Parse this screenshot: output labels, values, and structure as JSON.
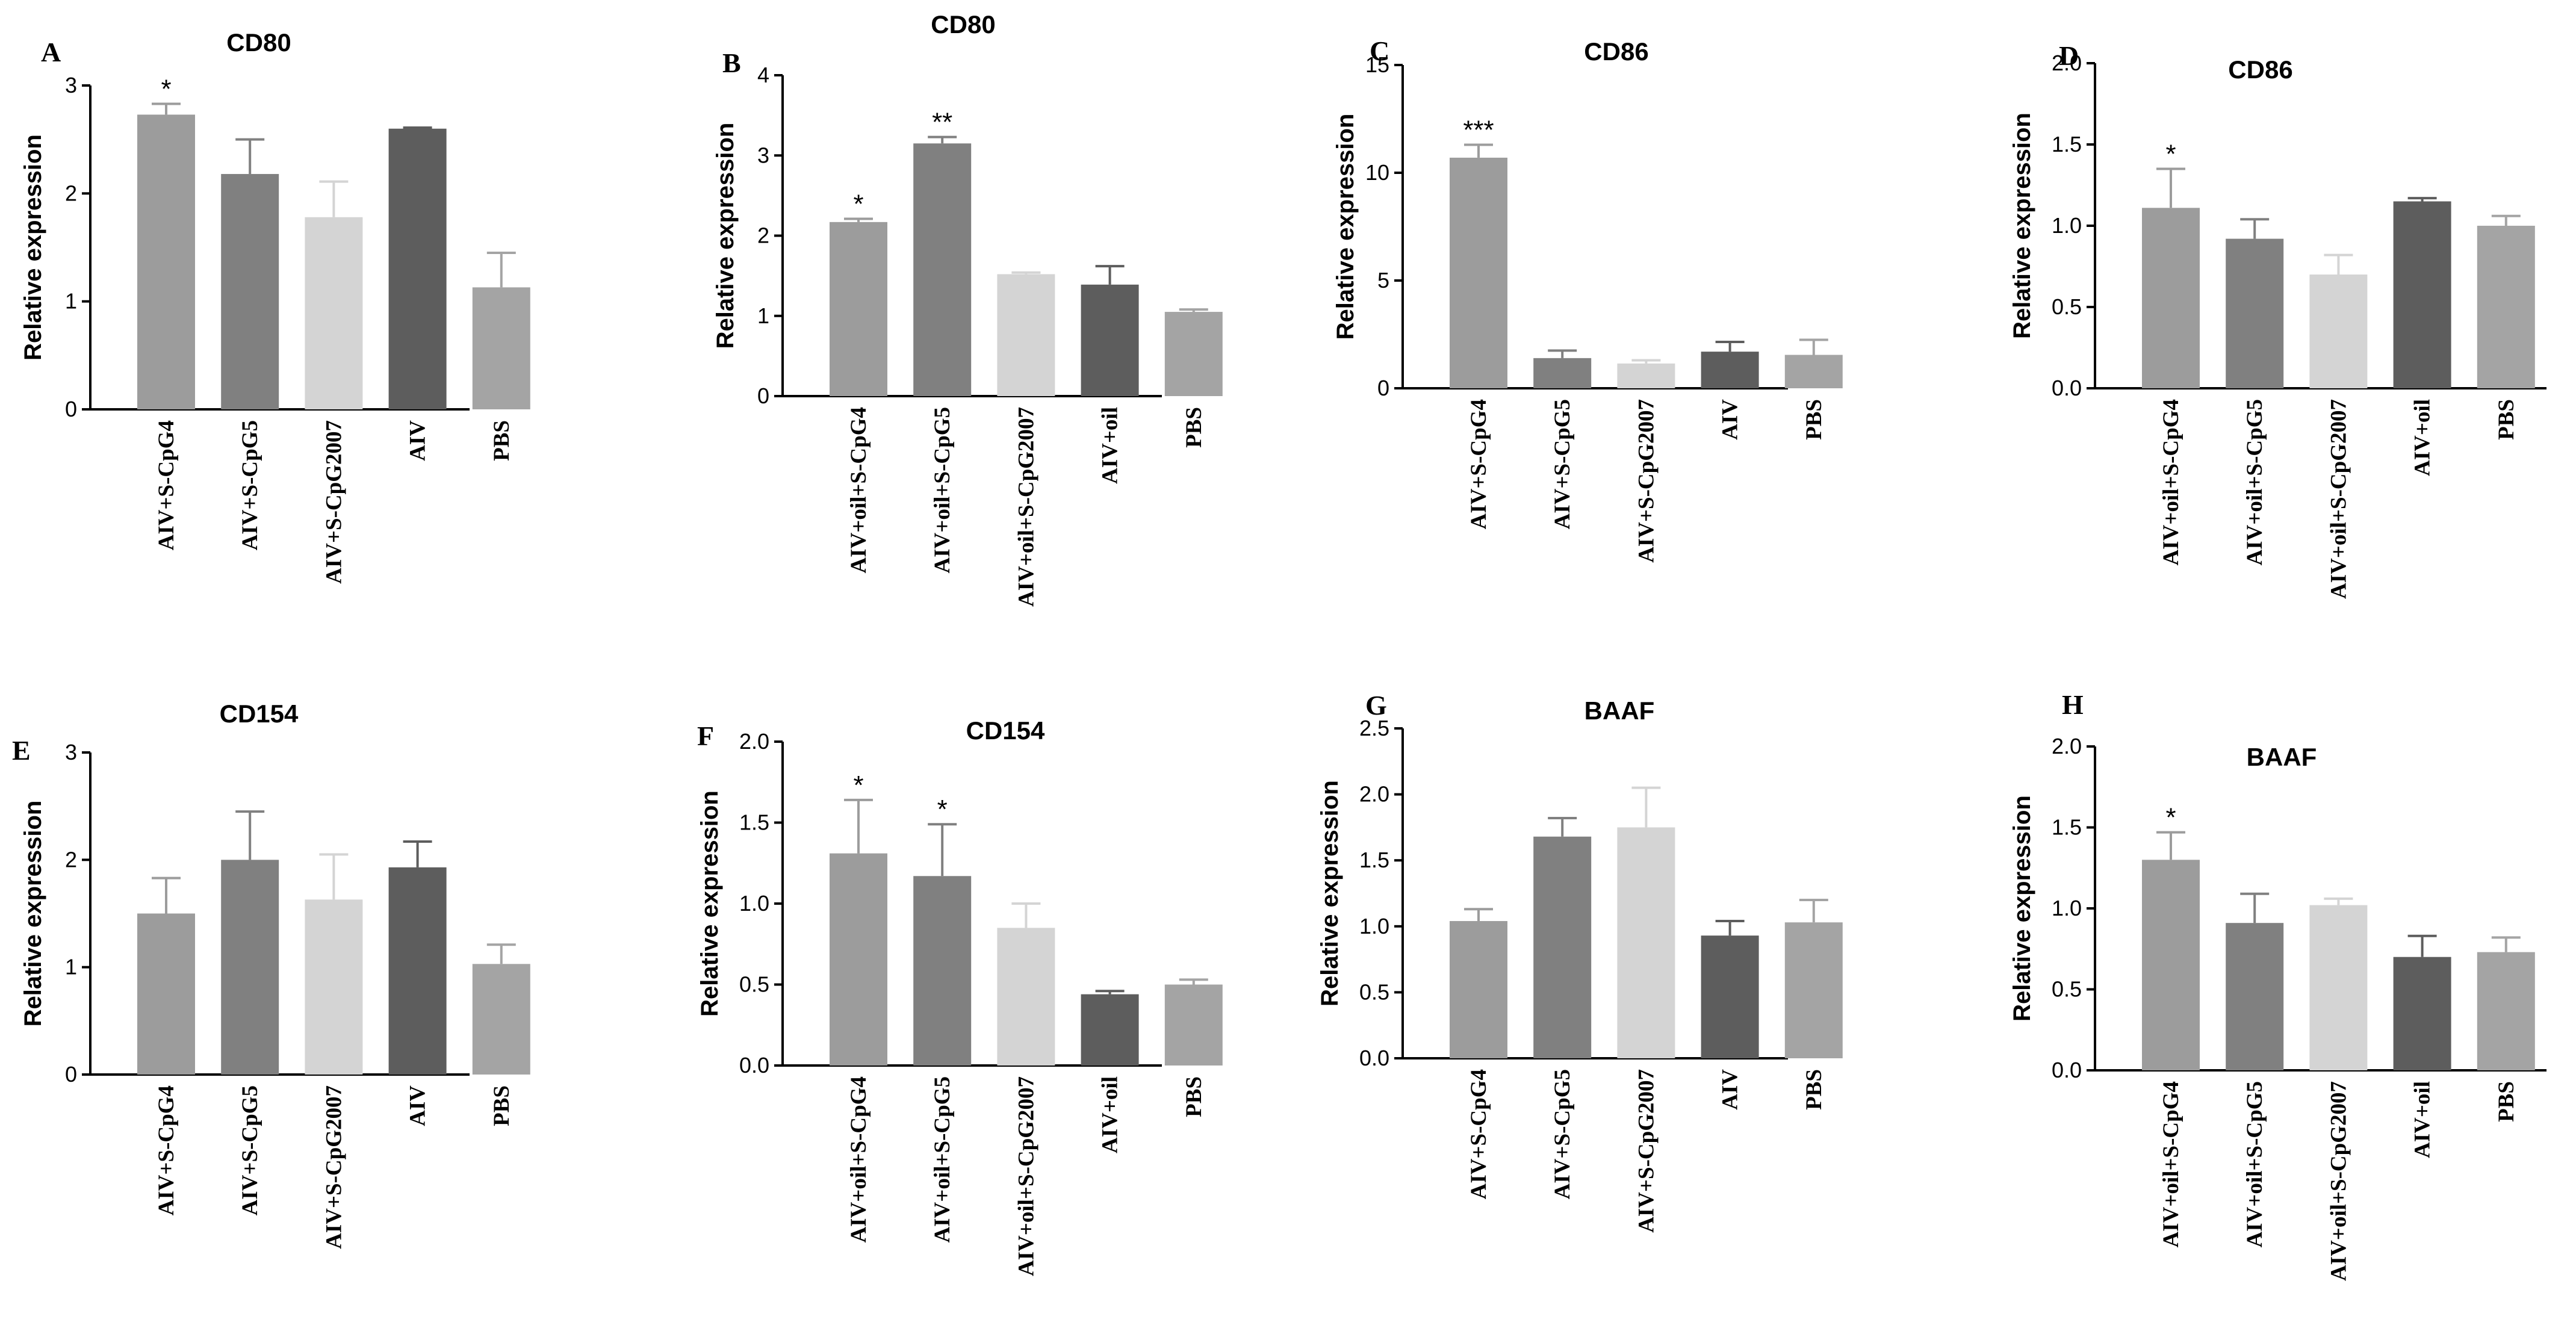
{
  "chart_data": [
    {
      "panel": "A",
      "type": "bar",
      "title": "CD80",
      "ylabel": "Relative expression",
      "ylim": [
        0,
        3
      ],
      "yticks": [
        "0",
        "1",
        "2",
        "3"
      ],
      "categories": [
        "AIV+S-CpG4",
        "AIV+S-CpG5",
        "AIV+S-CpG2007",
        "AIV",
        "PBS"
      ],
      "values": [
        2.73,
        2.18,
        1.78,
        2.6,
        1.13
      ],
      "errors": [
        0.1,
        0.32,
        0.33,
        0.01,
        0.32
      ],
      "significance": [
        "*",
        "",
        "",
        "",
        ""
      ],
      "colors": [
        "#9c9c9c",
        "#808080",
        "#d4d4d4",
        "#5d5d5d",
        "#a4a4a4"
      ]
    },
    {
      "panel": "B",
      "type": "bar",
      "title": "CD80",
      "ylabel": "Relative expression",
      "ylim": [
        0,
        4
      ],
      "yticks": [
        "0",
        "1",
        "2",
        "3",
        "4"
      ],
      "categories": [
        "AIV+oil+S-CpG4",
        "AIV+oil+S-CpG5",
        "AIV+oil+S-CpG2007",
        "AIV+oil",
        "PBS"
      ],
      "values": [
        2.17,
        3.15,
        1.52,
        1.39,
        1.05
      ],
      "errors": [
        0.04,
        0.08,
        0.02,
        0.23,
        0.03
      ],
      "significance": [
        "*",
        "**",
        "",
        "",
        ""
      ],
      "colors": [
        "#9c9c9c",
        "#808080",
        "#d4d4d4",
        "#5d5d5d",
        "#a4a4a4"
      ]
    },
    {
      "panel": "C",
      "type": "bar",
      "title": "CD86",
      "ylabel": "Relative expression",
      "ylim": [
        0,
        15
      ],
      "yticks": [
        "0",
        "5",
        "10",
        "15"
      ],
      "categories": [
        "AIV+S-CpG4",
        "AIV+S-CpG5",
        "AIV+S-CpG2007",
        "AIV",
        "PBS"
      ],
      "values": [
        10.7,
        1.4,
        1.15,
        1.7,
        1.55
      ],
      "errors": [
        0.6,
        0.35,
        0.15,
        0.45,
        0.7
      ],
      "significance": [
        "***",
        "",
        "",
        "",
        ""
      ],
      "colors": [
        "#9c9c9c",
        "#808080",
        "#d4d4d4",
        "#5d5d5d",
        "#a4a4a4"
      ]
    },
    {
      "panel": "D",
      "type": "bar",
      "title": "CD86",
      "ylabel": "Relative expression",
      "ylim": [
        0,
        2
      ],
      "yticks": [
        "0.0",
        "0.5",
        "1.0",
        "1.5",
        "2.0"
      ],
      "categories": [
        "AIV+oil+S-CpG4",
        "AIV+oil+S-CpG5",
        "AIV+oil+S-CpG2007",
        "AIV+oil",
        "PBS"
      ],
      "values": [
        1.11,
        0.92,
        0.7,
        1.15,
        1.0
      ],
      "errors": [
        0.24,
        0.12,
        0.12,
        0.02,
        0.06
      ],
      "significance": [
        "*",
        "",
        "",
        "",
        ""
      ],
      "colors": [
        "#9c9c9c",
        "#808080",
        "#d4d4d4",
        "#5d5d5d",
        "#a4a4a4"
      ]
    },
    {
      "panel": "E",
      "type": "bar",
      "title": "CD154",
      "ylabel": "Relative expression",
      "ylim": [
        0,
        3
      ],
      "yticks": [
        "0",
        "1",
        "2",
        "3"
      ],
      "categories": [
        "AIV+S-CpG4",
        "AIV+S-CpG5",
        "AIV+S-CpG2007",
        "AIV",
        "PBS"
      ],
      "values": [
        1.5,
        2.0,
        1.63,
        1.93,
        1.03
      ],
      "errors": [
        0.33,
        0.45,
        0.42,
        0.24,
        0.18
      ],
      "significance": [
        "",
        "",
        "",
        "",
        ""
      ],
      "colors": [
        "#9c9c9c",
        "#808080",
        "#d4d4d4",
        "#5d5d5d",
        "#a4a4a4"
      ]
    },
    {
      "panel": "F",
      "type": "bar",
      "title": "CD154",
      "ylabel": "Relative expression",
      "ylim": [
        0,
        2
      ],
      "yticks": [
        "0.0",
        "0.5",
        "1.0",
        "1.5",
        "2.0"
      ],
      "categories": [
        "AIV+oil+S-CpG4",
        "AIV+oil+S-CpG5",
        "AIV+oil+S-CpG2007",
        "AIV+oil",
        "PBS"
      ],
      "values": [
        1.31,
        1.17,
        0.85,
        0.44,
        0.5
      ],
      "errors": [
        0.33,
        0.32,
        0.15,
        0.02,
        0.03
      ],
      "significance": [
        "*",
        "*",
        "",
        "",
        ""
      ],
      "colors": [
        "#9c9c9c",
        "#808080",
        "#d4d4d4",
        "#5d5d5d",
        "#a4a4a4"
      ]
    },
    {
      "panel": "G",
      "type": "bar",
      "title": "BAAF",
      "ylabel": "Relative expression",
      "ylim": [
        0,
        2.5
      ],
      "yticks": [
        "0.0",
        "0.5",
        "1.0",
        "1.5",
        "2.0",
        "2.5"
      ],
      "categories": [
        "AIV+S-CpG4",
        "AIV+S-CpG5",
        "AIV+S-CpG2007",
        "AIV",
        "PBS"
      ],
      "values": [
        1.04,
        1.68,
        1.75,
        0.93,
        1.03
      ],
      "errors": [
        0.09,
        0.14,
        0.3,
        0.11,
        0.17
      ],
      "significance": [
        "",
        "",
        "",
        "",
        ""
      ],
      "colors": [
        "#9c9c9c",
        "#808080",
        "#d4d4d4",
        "#5d5d5d",
        "#a4a4a4"
      ]
    },
    {
      "panel": "H",
      "type": "bar",
      "title": "BAAF",
      "ylabel": "Relative expression",
      "ylim": [
        0,
        2
      ],
      "yticks": [
        "0.0",
        "0.5",
        "1.0",
        "1.5",
        "2.0"
      ],
      "categories": [
        "AIV+oil+S-CpG4",
        "AIV+oil+S-CpG5",
        "AIV+oil+S-CpG2007",
        "AIV+oil",
        "PBS"
      ],
      "values": [
        1.3,
        0.91,
        1.02,
        0.7,
        0.73
      ],
      "errors": [
        0.17,
        0.18,
        0.04,
        0.13,
        0.09
      ],
      "significance": [
        "*",
        "",
        "",
        "",
        ""
      ],
      "colors": [
        "#9c9c9c",
        "#808080",
        "#d4d4d4",
        "#5d5d5d",
        "#a4a4a4"
      ]
    }
  ]
}
